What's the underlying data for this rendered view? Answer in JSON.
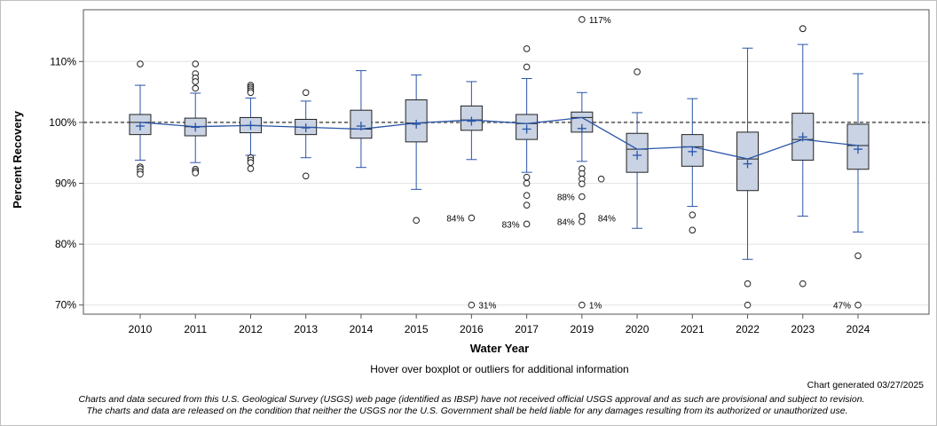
{
  "chart_data": {
    "type": "boxplot",
    "xlabel": "Water Year",
    "ylabel": "Percent Recovery",
    "ylim": [
      68.5,
      118.5
    ],
    "yticks": [
      70,
      80,
      90,
      100,
      110
    ],
    "ytick_labels": [
      "70%",
      "80%",
      "90%",
      "100%",
      "110%"
    ],
    "reference_line": 100,
    "categories": [
      "2010",
      "2011",
      "2012",
      "2013",
      "2014",
      "2015",
      "2016",
      "2017",
      "2019",
      "2020",
      "2021",
      "2022",
      "2023",
      "2024"
    ],
    "boxes": [
      {
        "year": "2010",
        "whisker_low": 93.8,
        "q1": 98.0,
        "median": 100.0,
        "q3": 101.3,
        "whisker_high": 106.1,
        "mean": 99.4,
        "outliers": [
          109.6,
          92.7,
          92.4,
          91.9,
          91.5
        ]
      },
      {
        "year": "2011",
        "whisker_low": 93.4,
        "q1": 97.8,
        "median": 99.3,
        "q3": 100.7,
        "whisker_high": 104.8,
        "mean": 99.2,
        "outliers": [
          109.6,
          108.0,
          107.3,
          106.7,
          105.6,
          92.3,
          92.0,
          91.7
        ]
      },
      {
        "year": "2012",
        "whisker_low": 94.6,
        "q1": 98.3,
        "median": 99.5,
        "q3": 100.8,
        "whisker_high": 104.0,
        "mean": 99.5,
        "outliers": [
          106.1,
          105.8,
          105.5,
          105.2,
          104.9,
          94.2,
          93.8,
          93.4,
          92.4
        ]
      },
      {
        "year": "2013",
        "whisker_low": 94.2,
        "q1": 98.0,
        "median": 99.2,
        "q3": 100.5,
        "whisker_high": 103.5,
        "mean": 99.1,
        "outliers": [
          104.9,
          91.2
        ]
      },
      {
        "year": "2014",
        "whisker_low": 92.6,
        "q1": 97.4,
        "median": 98.9,
        "q3": 102.0,
        "whisker_high": 108.5,
        "mean": 99.4,
        "outliers": []
      },
      {
        "year": "2015",
        "whisker_low": 89.0,
        "q1": 96.8,
        "median": 99.9,
        "q3": 103.7,
        "whisker_high": 107.8,
        "mean": 99.7,
        "outliers": [
          83.9
        ]
      },
      {
        "year": "2016",
        "whisker_low": 93.9,
        "q1": 98.7,
        "median": 100.4,
        "q3": 102.7,
        "whisker_high": 106.7,
        "mean": 100.2,
        "outliers": [
          84.3,
          70.0
        ]
      },
      {
        "year": "2017",
        "whisker_low": 91.8,
        "q1": 97.2,
        "median": 99.8,
        "q3": 101.3,
        "whisker_high": 107.2,
        "mean": 98.9,
        "outliers": [
          112.1,
          109.1,
          91.0,
          90.0,
          88.0,
          86.4,
          83.3
        ]
      },
      {
        "year": "2019",
        "whisker_low": 93.6,
        "q1": 98.4,
        "median": 100.8,
        "q3": 101.7,
        "whisker_high": 104.9,
        "mean": 99.0,
        "outliers": [
          116.9,
          92.4,
          91.6,
          90.7,
          89.9,
          87.8,
          84.6,
          83.7,
          70.0
        ]
      },
      {
        "year": "2020",
        "whisker_low": 82.6,
        "q1": 91.8,
        "median": 95.6,
        "q3": 98.2,
        "whisker_high": 101.6,
        "mean": 94.6,
        "outliers": [
          108.3
        ]
      },
      {
        "year": "2021",
        "whisker_low": 86.2,
        "q1": 92.8,
        "median": 96.0,
        "q3": 98.0,
        "whisker_high": 103.9,
        "mean": 95.2,
        "outliers": [
          84.8,
          82.3
        ]
      },
      {
        "year": "2022",
        "whisker_low": 77.5,
        "q1": 88.8,
        "median": 94.0,
        "q3": 98.4,
        "whisker_high": 112.2,
        "mean": 93.2,
        "outliers": [
          73.5,
          70.0
        ]
      },
      {
        "year": "2023",
        "whisker_low": 84.6,
        "q1": 93.8,
        "median": 97.2,
        "q3": 101.5,
        "whisker_high": 112.8,
        "mean": 97.6,
        "outliers": [
          115.4,
          115.4,
          73.5
        ]
      },
      {
        "year": "2024",
        "whisker_low": 82.0,
        "q1": 92.3,
        "median": 96.2,
        "q3": 99.7,
        "whisker_high": 108.0,
        "mean": 95.6,
        "outliers": [
          78.1,
          70.0
        ]
      }
    ],
    "extra_points": [
      {
        "year": "2019",
        "offset": 0.35,
        "value": 90.7
      }
    ],
    "annotations": [
      {
        "year": "2019",
        "value": 116.9,
        "label": "117%",
        "side": "right"
      },
      {
        "year": "2016",
        "value": 84.3,
        "label": "84%",
        "side": "left"
      },
      {
        "year": "2016",
        "value": 70.0,
        "label": "31%",
        "side": "right"
      },
      {
        "year": "2017",
        "value": 83.3,
        "label": "83%",
        "side": "left"
      },
      {
        "year": "2019",
        "value": 87.8,
        "label": "88%",
        "side": "left"
      },
      {
        "year": "2019",
        "value": 83.7,
        "label": "84%",
        "side": "left"
      },
      {
        "year": "2019",
        "value": 84.3,
        "label": "84%",
        "side": "right2"
      },
      {
        "year": "2019",
        "value": 70.0,
        "label": "1%",
        "side": "right"
      },
      {
        "year": "2024",
        "value": 70.0,
        "label": "47%",
        "side": "left"
      }
    ],
    "colors": {
      "box_fill": "#c9d3e3",
      "box_stroke": "#222222",
      "whisker": "#2a55a8",
      "mean_line": "#2a55a8",
      "ref_line": "#777777",
      "grid": "#e4e4e4"
    }
  },
  "notes": {
    "hover": "Hover over boxplot or outliers for additional information",
    "generated": "Chart generated 03/27/2025",
    "disclaimer_line1": "Charts and data secured from this U.S. Geological Survey (USGS) web page (identified as IBSP) have not received official USGS approval and as such are provisional and subject to revision.",
    "disclaimer_line2": "The charts and data are released on the condition that neither the USGS nor the U.S. Government shall be held liable for any damages resulting from its authorized or unauthorized use."
  }
}
